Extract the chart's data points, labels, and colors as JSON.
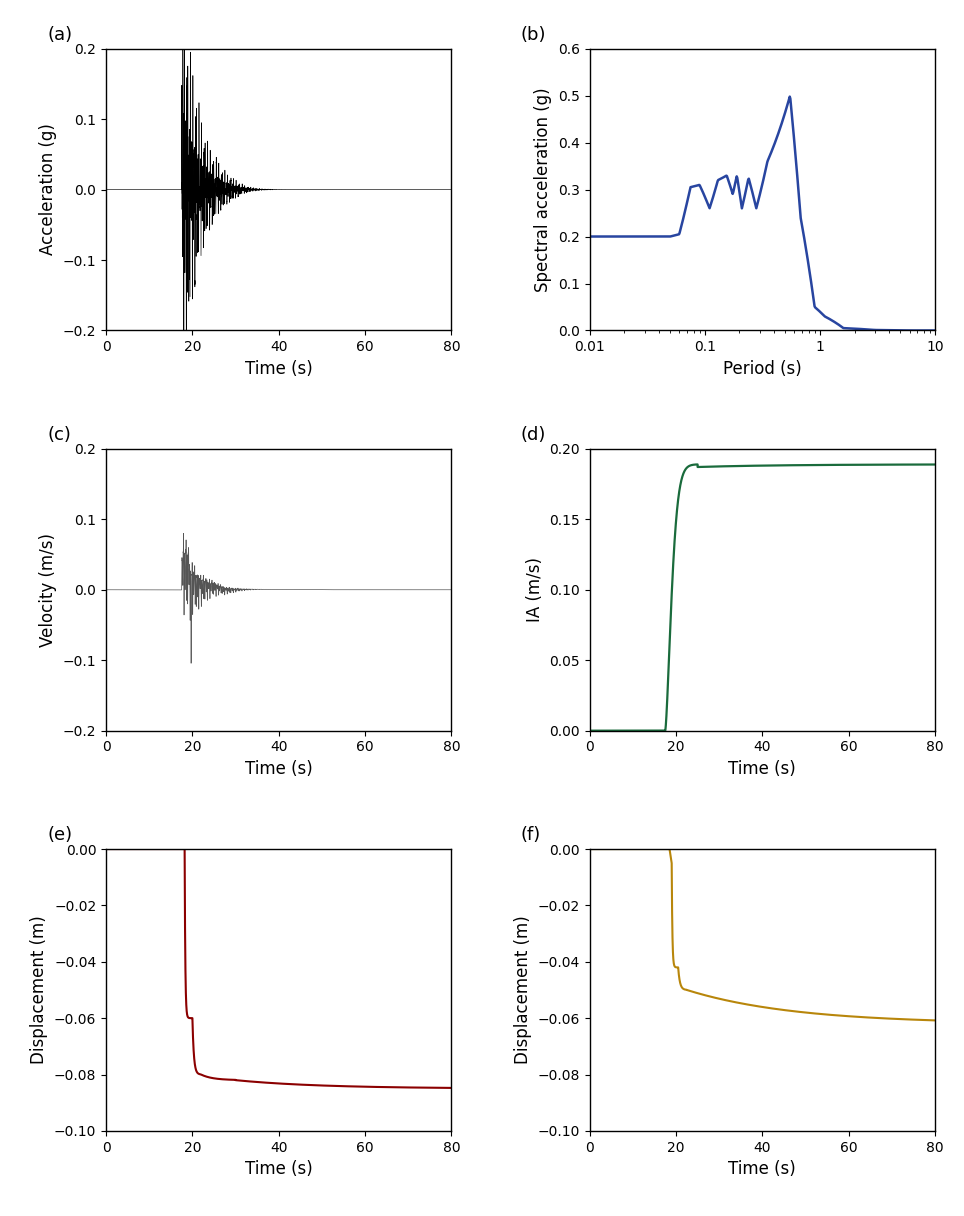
{
  "panel_labels": [
    "(a)",
    "(b)",
    "(c)",
    "(d)",
    "(e)",
    "(f)"
  ],
  "accel_ylim": [
    -0.2,
    0.2
  ],
  "accel_yticks": [
    -0.2,
    -0.1,
    0.0,
    0.1,
    0.2
  ],
  "accel_ylabel": "Acceleration (g)",
  "accel_xlabel": "Time (s)",
  "accel_xlim": [
    0,
    80
  ],
  "accel_xticks": [
    0,
    20,
    40,
    60,
    80
  ],
  "accel_color": "#000000",
  "spec_ylim": [
    0.0,
    0.6
  ],
  "spec_yticks": [
    0.0,
    0.1,
    0.2,
    0.3,
    0.4,
    0.5,
    0.6
  ],
  "spec_ylabel": "Spectral acceleration (g)",
  "spec_xlabel": "Period (s)",
  "spec_color": "#2845a0",
  "vel_ylim": [
    -0.2,
    0.2
  ],
  "vel_yticks": [
    -0.2,
    -0.1,
    0.0,
    0.1,
    0.2
  ],
  "vel_ylabel": "Velocity (m/s)",
  "vel_xlabel": "Time (s)",
  "vel_xlim": [
    0,
    80
  ],
  "vel_xticks": [
    0,
    20,
    40,
    60,
    80
  ],
  "vel_color": "#555555",
  "ia_ylim": [
    0.0,
    0.2
  ],
  "ia_yticks": [
    0.0,
    0.05,
    0.1,
    0.15,
    0.2
  ],
  "ia_ylabel": "IA (m/s)",
  "ia_xlabel": "Time (s)",
  "ia_xlim": [
    0,
    80
  ],
  "ia_xticks": [
    0,
    20,
    40,
    60,
    80
  ],
  "ia_color": "#1a6b3c",
  "cfrd_ylim": [
    -0.1,
    0.0
  ],
  "cfrd_yticks": [
    -0.1,
    -0.08,
    -0.06,
    -0.04,
    -0.02,
    0.0
  ],
  "cfrd_ylabel": "Displacement (m)",
  "cfrd_xlabel": "Time (s)",
  "cfrd_xlim": [
    0,
    80
  ],
  "cfrd_xticks": [
    0,
    20,
    40,
    60,
    80
  ],
  "cfrd_color": "#8b0000",
  "ecrd_ylim": [
    -0.1,
    0.0
  ],
  "ecrd_yticks": [
    -0.1,
    -0.08,
    -0.06,
    -0.04,
    -0.02,
    0.0
  ],
  "ecrd_ylabel": "Displacement (m)",
  "ecrd_xlabel": "Time (s)",
  "ecrd_xlim": [
    0,
    80
  ],
  "ecrd_xticks": [
    0,
    20,
    40,
    60,
    80
  ],
  "ecrd_color": "#b8860b",
  "label_fontsize": 12,
  "tick_fontsize": 10,
  "panel_label_fontsize": 13
}
